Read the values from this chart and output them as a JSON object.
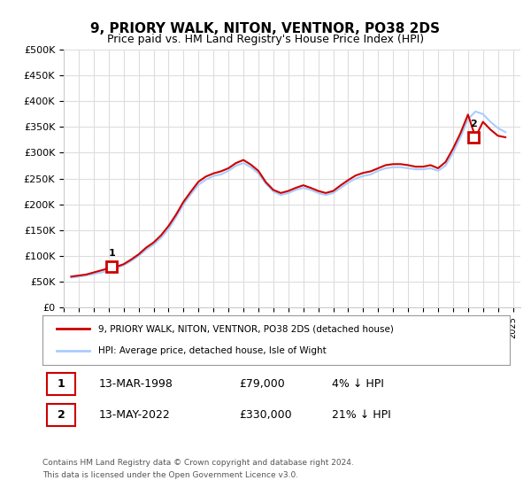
{
  "title": "9, PRIORY WALK, NITON, VENTNOR, PO38 2DS",
  "subtitle": "Price paid vs. HM Land Registry's House Price Index (HPI)",
  "ylabel": "",
  "ylim": [
    0,
    500000
  ],
  "yticks": [
    0,
    50000,
    100000,
    150000,
    200000,
    250000,
    300000,
    350000,
    400000,
    450000,
    500000
  ],
  "xlim_start": 1995.0,
  "xlim_end": 2025.5,
  "background_color": "#ffffff",
  "plot_bg_color": "#ffffff",
  "grid_color": "#dddddd",
  "hpi_color": "#aaccff",
  "price_color": "#cc0000",
  "marker_color": "#cc0000",
  "transaction1": {
    "year": 1998.2,
    "price": 79000,
    "label": "1",
    "date": "13-MAR-1998",
    "pct": "4% ↓ HPI"
  },
  "transaction2": {
    "year": 2022.37,
    "price": 330000,
    "label": "2",
    "date": "13-MAY-2022",
    "pct": "21% ↓ HPI"
  },
  "legend_property": "9, PRIORY WALK, NITON, VENTNOR, PO38 2DS (detached house)",
  "legend_hpi": "HPI: Average price, detached house, Isle of Wight",
  "footer1": "Contains HM Land Registry data © Crown copyright and database right 2024.",
  "footer2": "This data is licensed under the Open Government Licence v3.0.",
  "table_row1_num": "1",
  "table_row1_date": "13-MAR-1998",
  "table_row1_price": "£79,000",
  "table_row1_pct": "4% ↓ HPI",
  "table_row2_num": "2",
  "table_row2_date": "13-MAY-2022",
  "table_row2_price": "£330,000",
  "table_row2_pct": "21% ↓ HPI",
  "hpi_x": [
    1995.5,
    1996.0,
    1996.5,
    1997.0,
    1997.5,
    1998.0,
    1998.5,
    1999.0,
    1999.5,
    2000.0,
    2000.5,
    2001.0,
    2001.5,
    2002.0,
    2002.5,
    2003.0,
    2003.5,
    2004.0,
    2004.5,
    2005.0,
    2005.5,
    2006.0,
    2006.5,
    2007.0,
    2007.5,
    2008.0,
    2008.5,
    2009.0,
    2009.5,
    2010.0,
    2010.5,
    2011.0,
    2011.5,
    2012.0,
    2012.5,
    2013.0,
    2013.5,
    2014.0,
    2014.5,
    2015.0,
    2015.5,
    2016.0,
    2016.5,
    2017.0,
    2017.5,
    2018.0,
    2018.5,
    2019.0,
    2019.5,
    2020.0,
    2020.5,
    2021.0,
    2021.5,
    2022.0,
    2022.5,
    2023.0,
    2023.5,
    2024.0,
    2024.5
  ],
  "hpi_y": [
    58000,
    60000,
    62000,
    65000,
    68000,
    71000,
    76000,
    82000,
    90000,
    100000,
    112000,
    122000,
    135000,
    152000,
    175000,
    200000,
    220000,
    238000,
    248000,
    255000,
    258000,
    265000,
    275000,
    280000,
    272000,
    260000,
    240000,
    225000,
    218000,
    222000,
    228000,
    232000,
    228000,
    222000,
    218000,
    222000,
    232000,
    242000,
    250000,
    255000,
    258000,
    265000,
    270000,
    272000,
    272000,
    270000,
    268000,
    268000,
    270000,
    265000,
    275000,
    300000,
    330000,
    365000,
    380000,
    375000,
    360000,
    348000,
    340000
  ],
  "price_x": [
    1995.5,
    1996.0,
    1996.5,
    1997.0,
    1997.5,
    1998.0,
    1998.5,
    1999.0,
    1999.5,
    2000.0,
    2000.5,
    2001.0,
    2001.5,
    2002.0,
    2002.5,
    2003.0,
    2003.5,
    2004.0,
    2004.5,
    2005.0,
    2005.5,
    2006.0,
    2006.5,
    2007.0,
    2007.5,
    2008.0,
    2008.5,
    2009.0,
    2009.5,
    2010.0,
    2010.5,
    2011.0,
    2011.5,
    2012.0,
    2012.5,
    2013.0,
    2013.5,
    2014.0,
    2014.5,
    2015.0,
    2015.5,
    2016.0,
    2016.5,
    2017.0,
    2017.5,
    2018.0,
    2018.5,
    2019.0,
    2019.5,
    2020.0,
    2020.5,
    2021.0,
    2021.5,
    2022.0,
    2022.5,
    2023.0,
    2023.5,
    2024.0,
    2024.5
  ],
  "price_y": [
    60000,
    62000,
    64000,
    68000,
    72000,
    76000,
    79000,
    84000,
    93000,
    103000,
    116000,
    126000,
    140000,
    158000,
    180000,
    205000,
    225000,
    244000,
    254000,
    260000,
    264000,
    270000,
    280000,
    286000,
    277000,
    265000,
    243000,
    228000,
    222000,
    226000,
    232000,
    237000,
    232000,
    226000,
    222000,
    226000,
    237000,
    247000,
    256000,
    261000,
    264000,
    270000,
    276000,
    278000,
    278000,
    276000,
    273000,
    273000,
    276000,
    270000,
    282000,
    308000,
    338000,
    374000,
    330000,
    360000,
    345000,
    333000,
    330000
  ]
}
